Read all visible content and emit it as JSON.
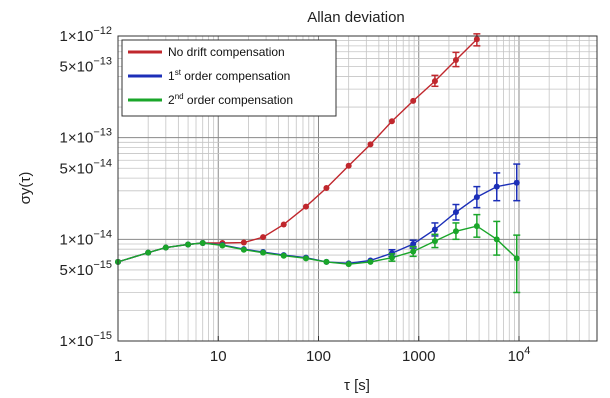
{
  "chart_data": {
    "type": "line",
    "title": "Allan deviation",
    "xlabel": "τ [s]",
    "ylabel": "σy(τ)",
    "xscale": "log",
    "yscale": "log",
    "xlim": [
      1,
      60000
    ],
    "ylim": [
      1e-15,
      1e-12
    ],
    "grid": true,
    "legend_position": "top-left",
    "x_ticks": [
      {
        "value": 1,
        "base": "1"
      },
      {
        "value": 10,
        "base": "10"
      },
      {
        "value": 100,
        "base": "100"
      },
      {
        "value": 1000,
        "base": "1000"
      },
      {
        "value": 10000,
        "base": "10",
        "exp": "4"
      }
    ],
    "y_ticks": [
      {
        "value": 1e-15,
        "mantissa": "1×10",
        "exp": "−15"
      },
      {
        "value": 5e-15,
        "mantissa": "5×10",
        "exp": "−15"
      },
      {
        "value": 1e-14,
        "mantissa": "1×10",
        "exp": "−14"
      },
      {
        "value": 5e-14,
        "mantissa": "5×10",
        "exp": "−14"
      },
      {
        "value": 1e-13,
        "mantissa": "1×10",
        "exp": "−13"
      },
      {
        "value": 5e-13,
        "mantissa": "5×10",
        "exp": "−13"
      },
      {
        "value": 1e-12,
        "mantissa": "1×10",
        "exp": "−12"
      }
    ],
    "series": [
      {
        "name": "No drift compensation",
        "legend_base": "No drift compensation",
        "legend_sup": "",
        "legend_rest": "",
        "color": "#c0272d",
        "points": [
          {
            "x": 1,
            "y": 6e-15
          },
          {
            "x": 2,
            "y": 7.4e-15
          },
          {
            "x": 3,
            "y": 8.3e-15
          },
          {
            "x": 5,
            "y": 8.9e-15
          },
          {
            "x": 7,
            "y": 9.2e-15
          },
          {
            "x": 11,
            "y": 9.2e-15
          },
          {
            "x": 18,
            "y": 9.3e-15
          },
          {
            "x": 28,
            "y": 1.05e-14
          },
          {
            "x": 45,
            "y": 1.4e-14
          },
          {
            "x": 75,
            "y": 2.1e-14
          },
          {
            "x": 120,
            "y": 3.2e-14
          },
          {
            "x": 200,
            "y": 5.3e-14
          },
          {
            "x": 330,
            "y": 8.6e-14
          },
          {
            "x": 540,
            "y": 1.45e-13
          },
          {
            "x": 880,
            "y": 2.3e-13
          },
          {
            "x": 1450,
            "y": 3.6e-13,
            "err": [
              3.2e-13,
              4.1e-13
            ]
          },
          {
            "x": 2350,
            "y": 5.8e-13,
            "err": [
              5e-13,
              6.9e-13
            ]
          },
          {
            "x": 3800,
            "y": 9.3e-13,
            "err": [
              8e-13,
              1.05e-12
            ]
          }
        ]
      },
      {
        "name": "1st order compensation",
        "legend_base": "1",
        "legend_sup": "st",
        "legend_rest": " order compensation",
        "color": "#1c2fb8",
        "points": [
          {
            "x": 1,
            "y": 6e-15
          },
          {
            "x": 2,
            "y": 7.4e-15
          },
          {
            "x": 3,
            "y": 8.3e-15
          },
          {
            "x": 5,
            "y": 8.9e-15
          },
          {
            "x": 7,
            "y": 9.2e-15
          },
          {
            "x": 11,
            "y": 8.8e-15
          },
          {
            "x": 18,
            "y": 8e-15
          },
          {
            "x": 28,
            "y": 7.5e-15
          },
          {
            "x": 45,
            "y": 7e-15
          },
          {
            "x": 75,
            "y": 6.6e-15
          },
          {
            "x": 120,
            "y": 6e-15
          },
          {
            "x": 200,
            "y": 5.8e-15
          },
          {
            "x": 330,
            "y": 6.2e-15
          },
          {
            "x": 540,
            "y": 7.3e-15,
            "err": [
              6.8e-15,
              7.9e-15
            ]
          },
          {
            "x": 880,
            "y": 9e-15,
            "err": [
              8.2e-15,
              9.8e-15
            ]
          },
          {
            "x": 1450,
            "y": 1.25e-14,
            "err": [
              1.08e-14,
              1.45e-14
            ]
          },
          {
            "x": 2350,
            "y": 1.85e-14,
            "err": [
              1.55e-14,
              2.2e-14
            ]
          },
          {
            "x": 3800,
            "y": 2.6e-14,
            "err": [
              2.05e-14,
              3.3e-14
            ]
          },
          {
            "x": 6000,
            "y": 3.3e-14,
            "err": [
              2.4e-14,
              4.5e-14
            ]
          },
          {
            "x": 9500,
            "y": 3.6e-14,
            "err": [
              2.4e-14,
              5.5e-14
            ]
          }
        ]
      },
      {
        "name": "2nd order compensation",
        "legend_base": "2",
        "legend_sup": "nd",
        "legend_rest": " order compensation",
        "color": "#1aa62a",
        "points": [
          {
            "x": 1,
            "y": 6e-15
          },
          {
            "x": 2,
            "y": 7.4e-15
          },
          {
            "x": 3,
            "y": 8.3e-15
          },
          {
            "x": 5,
            "y": 8.9e-15
          },
          {
            "x": 7,
            "y": 9.2e-15
          },
          {
            "x": 11,
            "y": 8.7e-15
          },
          {
            "x": 18,
            "y": 7.9e-15
          },
          {
            "x": 28,
            "y": 7.4e-15
          },
          {
            "x": 45,
            "y": 6.9e-15
          },
          {
            "x": 75,
            "y": 6.5e-15
          },
          {
            "x": 120,
            "y": 6e-15
          },
          {
            "x": 200,
            "y": 5.7e-15
          },
          {
            "x": 330,
            "y": 6e-15
          },
          {
            "x": 540,
            "y": 6.6e-15,
            "err": [
              6.1e-15,
              7.2e-15
            ]
          },
          {
            "x": 880,
            "y": 7.6e-15,
            "err": [
              6.8e-15,
              8.5e-15
            ]
          },
          {
            "x": 1450,
            "y": 9.6e-15,
            "err": [
              8.3e-15,
              1.12e-14
            ]
          },
          {
            "x": 2350,
            "y": 1.2e-14,
            "err": [
              1e-14,
              1.45e-14
            ]
          },
          {
            "x": 3800,
            "y": 1.35e-14,
            "err": [
              1.05e-14,
              1.75e-14
            ]
          },
          {
            "x": 6000,
            "y": 1e-14,
            "err": [
              7e-15,
              1.5e-14
            ]
          },
          {
            "x": 9500,
            "y": 6.5e-15,
            "err": [
              3e-15,
              1.1e-14
            ]
          }
        ]
      }
    ]
  }
}
